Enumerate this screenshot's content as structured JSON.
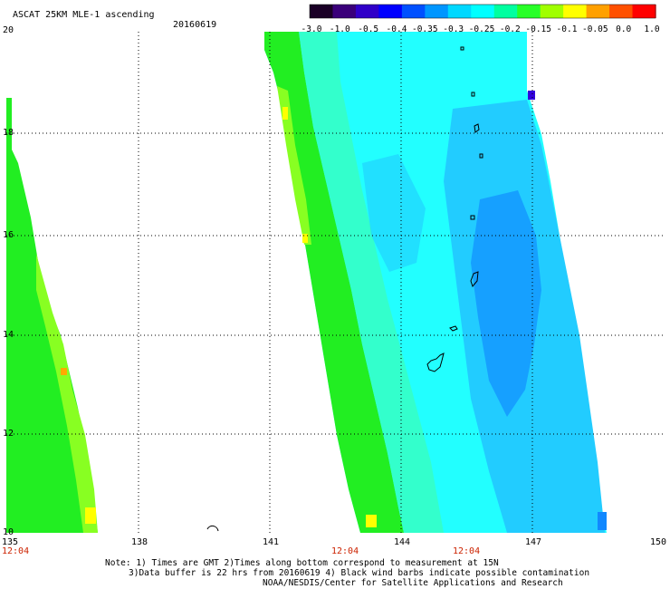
{
  "header": {
    "product": "ASCAT 25KM MLE-1 ascending",
    "date": "20160619"
  },
  "colorbar": {
    "tick_labels": [
      "-3.0",
      "-1.0",
      "-0.5",
      "-0.4",
      "-0.35",
      "-0.3",
      "-0.25",
      "-0.2",
      "-0.15",
      "-0.1",
      "-0.05",
      "0.0",
      "1.0"
    ],
    "colors": [
      "#1a0026",
      "#3a007a",
      "#3000c8",
      "#0000ff",
      "#0050ff",
      "#0096ff",
      "#00d8ff",
      "#00ffff",
      "#00ffa0",
      "#28ff28",
      "#a0ff00",
      "#ffff00",
      "#ffa000",
      "#ff5000",
      "#ff0000"
    ]
  },
  "map": {
    "lat_labels": [
      "20",
      "18",
      "16",
      "14",
      "12",
      "10"
    ],
    "lon_labels": [
      "135",
      "138",
      "141",
      "144",
      "147",
      "150"
    ],
    "time_labels": [
      "12:04",
      "12:04",
      "12:04"
    ],
    "swath_colors": {
      "green": "#22ee22",
      "lime": "#88ff22",
      "aqua_green": "#33ffcc",
      "cyan": "#22ffff",
      "light_blue": "#22ccff",
      "blue": "#1188ff",
      "purple": "#3300dd",
      "yellow": "#ffff00",
      "orange": "#ffaa00"
    }
  },
  "notes": {
    "line1": "Note: 1) Times are GMT 2)Times along bottom correspond to measurement at 15N",
    "line2": "3)Data buffer is 22 hrs from 20160619 4) Black wind barbs indicate possible contamination",
    "line3": "NOAA/NESDIS/Center for Satellite Applications and Research"
  }
}
